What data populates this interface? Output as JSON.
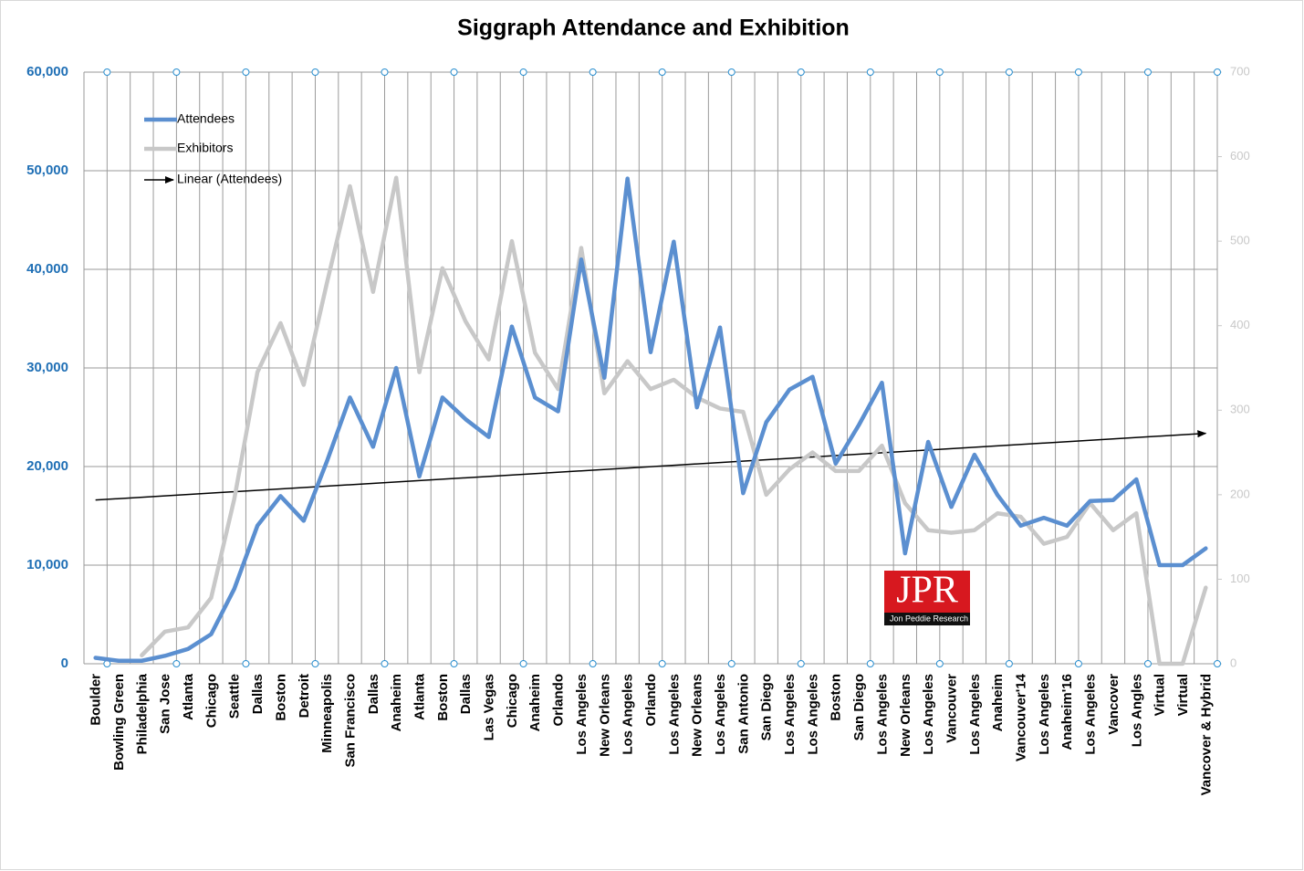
{
  "chart_data": {
    "type": "line",
    "title": "Siggraph Attendance and Exhibition",
    "categories": [
      "Boulder",
      "Bowling Green",
      "Philadelphia",
      "San Jose",
      "Atlanta",
      "Chicago",
      "Seattle",
      "Dallas",
      "Boston",
      "Detroit",
      "Minneapolis",
      "San Francisco",
      "Dallas",
      "Anaheim",
      "Atlanta",
      "Boston",
      "Dallas",
      "Las Vegas",
      "Chicago",
      "Anaheim",
      "Orlando",
      "Los Angeles",
      "New Orleans",
      "Los Angeles",
      "Orlando",
      "Los Angeles",
      "New Orleans",
      "Los Angeles",
      "San Antonio",
      "San Diego",
      "Los Angeles",
      "Los Angeles",
      "Boston",
      "San Diego",
      "Los Angeles",
      "New Orleans",
      "Los Angeles",
      "Vancouver",
      "Los Angeles",
      "Anaheim",
      "Vancouver'14",
      "Los Angeles",
      "Anaheim'16",
      "Los Angeles",
      "Vancover",
      "Los Angles",
      "Virtual",
      "Virtual",
      "Vancover & Hybrid"
    ],
    "series": [
      {
        "name": "Attendees",
        "color": "#5b8fd0",
        "axis": "y",
        "values": [
          600,
          300,
          300,
          800,
          1500,
          3000,
          7600,
          14000,
          17000,
          14500,
          20500,
          27000,
          22000,
          30000,
          19000,
          27000,
          24800,
          23000,
          34200,
          27000,
          25600,
          41000,
          29000,
          49200,
          31600,
          42800,
          26000,
          34100,
          17300,
          24500,
          27800,
          29100,
          20300,
          24200,
          28500,
          11200,
          22500,
          15900,
          21200,
          17100,
          14000,
          14800,
          14000,
          16500,
          16600,
          18700,
          10000,
          10000,
          11700
        ]
      },
      {
        "name": "Exhibitors",
        "color": "#c8c8c8",
        "axis": "y2",
        "values": [
          null,
          null,
          10,
          38,
          43,
          78,
          195,
          345,
          403,
          330,
          450,
          565,
          440,
          575,
          345,
          468,
          405,
          360,
          500,
          368,
          325,
          492,
          320,
          358,
          325,
          336,
          315,
          302,
          298,
          200,
          230,
          250,
          228,
          228,
          258,
          190,
          158,
          155,
          158,
          178,
          174,
          142,
          150,
          190,
          158,
          178,
          0,
          0,
          90
        ]
      }
    ],
    "trendline": {
      "name": "Linear (Attendees)",
      "color": "#000000"
    },
    "ylim": [
      0,
      60000
    ],
    "yticks": [
      0,
      {
        "value": 10000,
        "label": "10,000"
      },
      {
        "value": 20000,
        "label": "20,000"
      },
      {
        "value": 30000,
        "label": "30,000"
      },
      {
        "value": 40000,
        "label": "40,000"
      },
      {
        "value": 50000,
        "label": "50,000"
      },
      {
        "value": 60000,
        "label": "60,000"
      }
    ],
    "y2lim": [
      0,
      700
    ],
    "y2ticks": [
      0,
      100,
      200,
      300,
      400,
      500,
      600,
      700
    ],
    "grid": true,
    "legend": "top-left",
    "logo": {
      "text": "JPR",
      "subtitle": "Jon Peddie Research"
    }
  }
}
